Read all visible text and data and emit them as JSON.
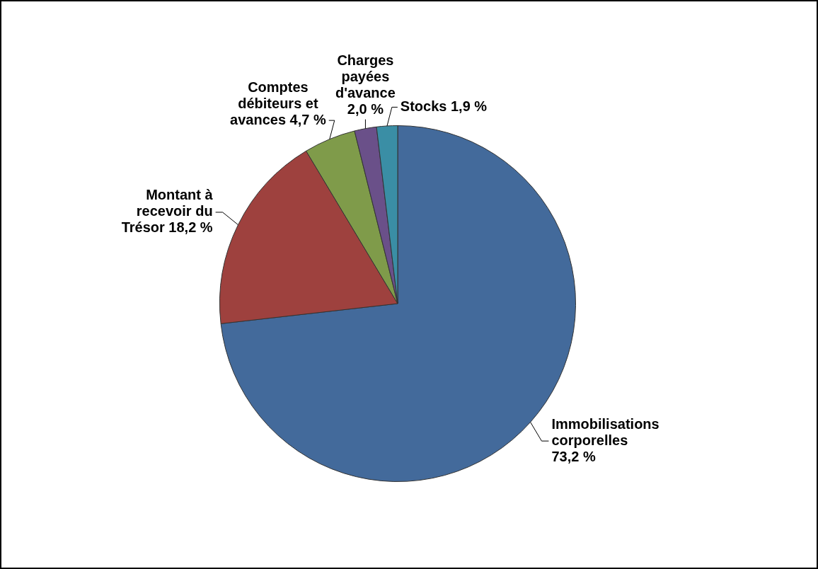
{
  "chart_data": {
    "type": "pie",
    "categories": [
      "Immobilisations corporelles",
      "Montant à recevoir du Trésor",
      "Comptes débiteurs et avances",
      "Charges payées d'avance",
      "Stocks"
    ],
    "values": [
      73.2,
      18.2,
      4.7,
      2.0,
      1.9
    ],
    "value_labels": [
      "73,2 %",
      "18,2 %",
      "4,7 %",
      "2,0 %",
      "1,9 %"
    ],
    "colors": [
      "#436a9b",
      "#9e413e",
      "#7f9b4a",
      "#6a5089",
      "#3a8ea5"
    ],
    "legend": false
  }
}
